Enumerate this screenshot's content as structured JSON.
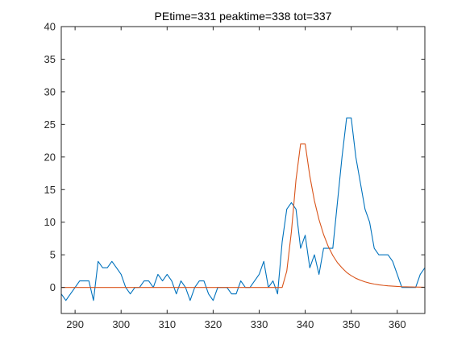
{
  "chart_data": {
    "type": "line",
    "title": "PEtime=331 peaktime=338 tot=337",
    "xlabel": "",
    "ylabel": "",
    "xlim": [
      287,
      366
    ],
    "ylim": [
      -4,
      40
    ],
    "xticks": [
      290,
      300,
      310,
      320,
      330,
      340,
      350,
      360
    ],
    "yticks": [
      0,
      5,
      10,
      15,
      20,
      25,
      30,
      35,
      40
    ],
    "grid": false,
    "legend": "none",
    "series": [
      {
        "color": "#0072BD",
        "x": [
          287,
          288,
          289,
          290,
          291,
          292,
          293,
          294,
          295,
          296,
          297,
          298,
          299,
          300,
          301,
          302,
          303,
          304,
          305,
          306,
          307,
          308,
          309,
          310,
          311,
          312,
          313,
          314,
          315,
          316,
          317,
          318,
          319,
          320,
          321,
          322,
          323,
          324,
          325,
          326,
          327,
          328,
          329,
          330,
          331,
          332,
          333,
          334,
          335,
          336,
          337,
          338,
          339,
          340,
          341,
          342,
          343,
          344,
          345,
          346,
          347,
          348,
          349,
          350,
          351,
          352,
          353,
          354,
          355,
          356,
          357,
          358,
          359,
          360,
          361,
          362,
          363,
          364,
          365,
          366
        ],
        "y": [
          -1,
          -2,
          -1,
          0,
          1,
          1,
          1,
          -2,
          4,
          3,
          3,
          4,
          3,
          2,
          0,
          -1,
          0,
          0,
          1,
          1,
          0,
          2,
          1,
          2,
          1,
          -1,
          1,
          0,
          -2,
          0,
          1,
          1,
          -1,
          -2,
          0,
          0,
          0,
          -1,
          -1,
          1,
          0,
          0,
          1,
          2,
          4,
          0,
          1,
          -1,
          7,
          12,
          13,
          12,
          6,
          8,
          3,
          5,
          2,
          6,
          6,
          6,
          13,
          20,
          26,
          26,
          20,
          16,
          12,
          10,
          6,
          5,
          5,
          5,
          4,
          2,
          0,
          0,
          0,
          0,
          2,
          3
        ]
      },
      {
        "color": "#D95319",
        "x": [
          287,
          288,
          289,
          290,
          291,
          292,
          293,
          294,
          295,
          296,
          297,
          298,
          299,
          300,
          301,
          302,
          303,
          304,
          305,
          306,
          307,
          308,
          309,
          310,
          311,
          312,
          313,
          314,
          315,
          316,
          317,
          318,
          319,
          320,
          321,
          322,
          323,
          324,
          325,
          326,
          327,
          328,
          329,
          330,
          331,
          332,
          333,
          334,
          335,
          336,
          337,
          338,
          339,
          340,
          341,
          342,
          343,
          344,
          345,
          346,
          347,
          348,
          349,
          350,
          351,
          352,
          353,
          354,
          355,
          356,
          357,
          358,
          359,
          360,
          361,
          362,
          363,
          364,
          365,
          366
        ],
        "y": [
          0,
          0,
          0,
          0,
          0,
          0,
          0,
          0,
          0,
          0,
          0,
          0,
          0,
          0,
          0,
          0,
          0,
          0,
          0,
          0,
          0,
          0,
          0,
          0,
          0,
          0,
          0,
          0,
          0,
          0,
          0,
          0,
          0,
          0,
          0,
          0,
          0,
          0,
          0,
          0,
          0,
          0,
          0,
          0,
          0,
          0,
          0,
          0,
          0,
          2.5,
          8.5,
          16.5,
          22,
          22,
          17.1,
          13.3,
          10.4,
          8.1,
          6.3,
          4.9,
          3.8,
          3.0,
          2.3,
          1.8,
          1.4,
          1.1,
          0.85,
          0.66,
          0.51,
          0.4,
          0.31,
          0.24,
          0.19,
          0.15,
          0.11,
          0.09,
          0.07,
          0.05,
          0.04,
          0.03
        ]
      }
    ]
  }
}
